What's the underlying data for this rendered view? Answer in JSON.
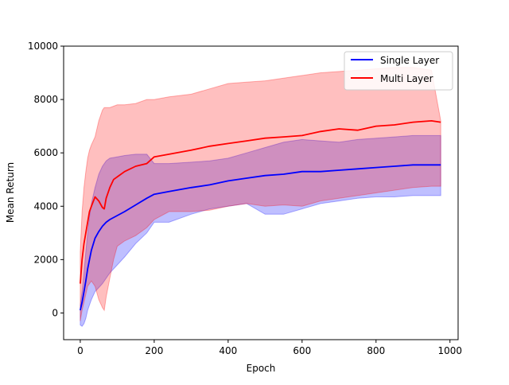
{
  "chart_data": {
    "type": "line",
    "title": "",
    "xlabel": "Epoch",
    "ylabel": "Mean Return",
    "xlim": [
      -45,
      1022
    ],
    "ylim": [
      -1000,
      10000
    ],
    "xticks": [
      0,
      200,
      400,
      600,
      800,
      1000
    ],
    "yticks": [
      0,
      2000,
      4000,
      6000,
      8000,
      10000
    ],
    "grid": false,
    "legend_position": "upper right",
    "series": [
      {
        "name": "Single Layer",
        "color": "#0000ff",
        "band_color": "#0000ff",
        "x": [
          0,
          5,
          10,
          15,
          20,
          25,
          30,
          40,
          50,
          60,
          70,
          80,
          100,
          120,
          150,
          180,
          200,
          240,
          300,
          350,
          400,
          450,
          500,
          550,
          600,
          650,
          700,
          750,
          800,
          850,
          900,
          950,
          975
        ],
        "mean": [
          100,
          400,
          800,
          1200,
          1650,
          2000,
          2350,
          2800,
          3050,
          3250,
          3400,
          3500,
          3650,
          3800,
          4050,
          4300,
          4450,
          4550,
          4700,
          4800,
          4950,
          5050,
          5150,
          5200,
          5300,
          5300,
          5350,
          5400,
          5450,
          5500,
          5550,
          5550,
          5550
        ],
        "lower": [
          -450,
          -500,
          -400,
          -200,
          100,
          300,
          500,
          800,
          950,
          1100,
          1300,
          1500,
          1800,
          2100,
          2600,
          3000,
          3400,
          3400,
          3700,
          3900,
          4000,
          4100,
          3700,
          3700,
          3900,
          4100,
          4200,
          4300,
          4350,
          4350,
          4400,
          4400,
          4400
        ],
        "upper": [
          300,
          800,
          1500,
          2300,
          3000,
          3600,
          4100,
          4700,
          5200,
          5500,
          5700,
          5800,
          5850,
          5900,
          5950,
          5950,
          5600,
          5600,
          5650,
          5700,
          5800,
          6000,
          6200,
          6400,
          6500,
          6450,
          6400,
          6500,
          6550,
          6600,
          6650,
          6650,
          6650
        ]
      },
      {
        "name": "Multi Layer",
        "color": "#ff0000",
        "band_color": "#ff0000",
        "x": [
          0,
          5,
          10,
          15,
          20,
          25,
          30,
          40,
          50,
          60,
          65,
          70,
          80,
          90,
          100,
          120,
          150,
          180,
          200,
          240,
          300,
          350,
          400,
          450,
          500,
          550,
          600,
          650,
          700,
          750,
          800,
          850,
          900,
          950,
          975
        ],
        "mean": [
          1100,
          2000,
          2600,
          3000,
          3400,
          3800,
          4000,
          4350,
          4200,
          3950,
          3900,
          4300,
          4700,
          5000,
          5100,
          5300,
          5500,
          5600,
          5850,
          5950,
          6100,
          6250,
          6350,
          6450,
          6550,
          6600,
          6650,
          6800,
          6900,
          6850,
          7000,
          7050,
          7150,
          7200,
          7150
        ],
        "lower": [
          -300,
          100,
          400,
          700,
          1000,
          1100,
          1200,
          1000,
          500,
          200,
          100,
          600,
          1300,
          2000,
          2500,
          2700,
          2900,
          3200,
          3500,
          3800,
          3800,
          3850,
          4000,
          4100,
          4000,
          4050,
          4000,
          4200,
          4300,
          4400,
          4500,
          4600,
          4700,
          4750,
          4750
        ],
        "upper": [
          2300,
          3800,
          4700,
          5300,
          5800,
          6100,
          6300,
          6600,
          7200,
          7600,
          7700,
          7700,
          7700,
          7750,
          7800,
          7800,
          7850,
          8000,
          8000,
          8100,
          8200,
          8400,
          8600,
          8650,
          8700,
          8800,
          8900,
          9000,
          9050,
          9100,
          9150,
          9200,
          9200,
          9100,
          7200
        ]
      }
    ]
  }
}
